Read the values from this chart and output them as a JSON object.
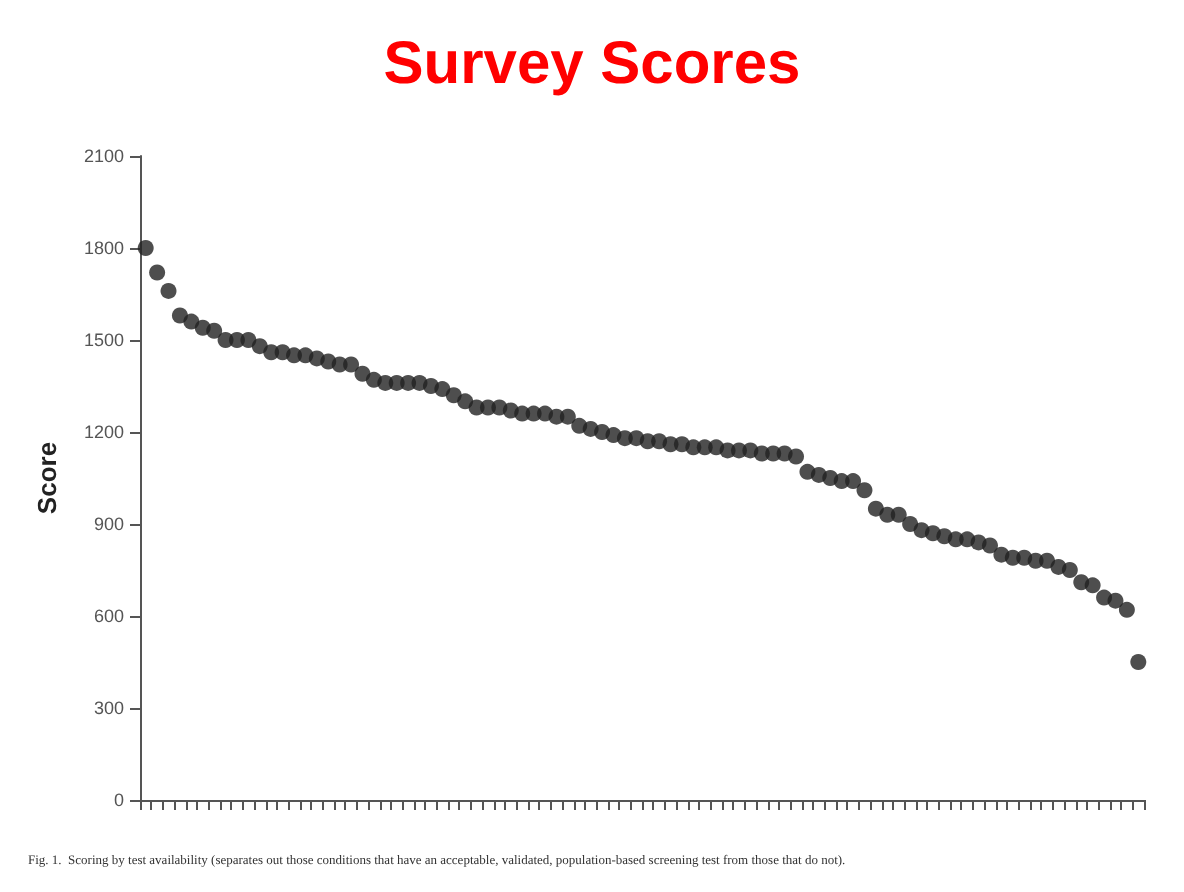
{
  "chart_data": {
    "type": "scatter",
    "title": "Survey Scores",
    "ylabel": "Score",
    "annotations": [
      "Fig. 1.  Scoring by test availability (separates out those conditions that have an acceptable, validated, population-based screening test from those that do not)."
    ],
    "categories": [
      null,
      null,
      null,
      null,
      null,
      null,
      null,
      null,
      null,
      null,
      null,
      null,
      null,
      null,
      null,
      null,
      null,
      null,
      null,
      null,
      null,
      null,
      null,
      null,
      null,
      null,
      null,
      null,
      null,
      null,
      null,
      null,
      null,
      null,
      null,
      null,
      null,
      null,
      null,
      null,
      null,
      null,
      null,
      null,
      null,
      null,
      null,
      null,
      null,
      null,
      null,
      null,
      null,
      null,
      null,
      null,
      null,
      null,
      null,
      null,
      null,
      null,
      null,
      null,
      null,
      null,
      null,
      null,
      null,
      null,
      null,
      null,
      null,
      null,
      null,
      null,
      null,
      null,
      null,
      null,
      null,
      null,
      null,
      null,
      null,
      null,
      null,
      null
    ],
    "values": [
      1800,
      1720,
      1660,
      1580,
      1560,
      1540,
      1530,
      1500,
      1500,
      1500,
      1480,
      1460,
      1460,
      1450,
      1450,
      1440,
      1430,
      1420,
      1420,
      1390,
      1370,
      1360,
      1360,
      1360,
      1360,
      1350,
      1340,
      1320,
      1300,
      1280,
      1280,
      1280,
      1270,
      1260,
      1260,
      1260,
      1250,
      1250,
      1220,
      1210,
      1200,
      1190,
      1180,
      1180,
      1170,
      1170,
      1160,
      1160,
      1150,
      1150,
      1150,
      1140,
      1140,
      1140,
      1130,
      1130,
      1130,
      1120,
      1070,
      1060,
      1050,
      1040,
      1040,
      1010,
      950,
      930,
      930,
      900,
      880,
      870,
      860,
      850,
      850,
      840,
      830,
      800,
      790,
      790,
      780,
      780,
      760,
      750,
      710,
      700,
      660,
      650,
      620,
      450
    ],
    "color": "#222222",
    "marker": "circle",
    "ylim": [
      0,
      2100
    ],
    "yticks": [
      0,
      300,
      600,
      900,
      1200,
      1500,
      1800,
      2100
    ],
    "grid": false
  }
}
